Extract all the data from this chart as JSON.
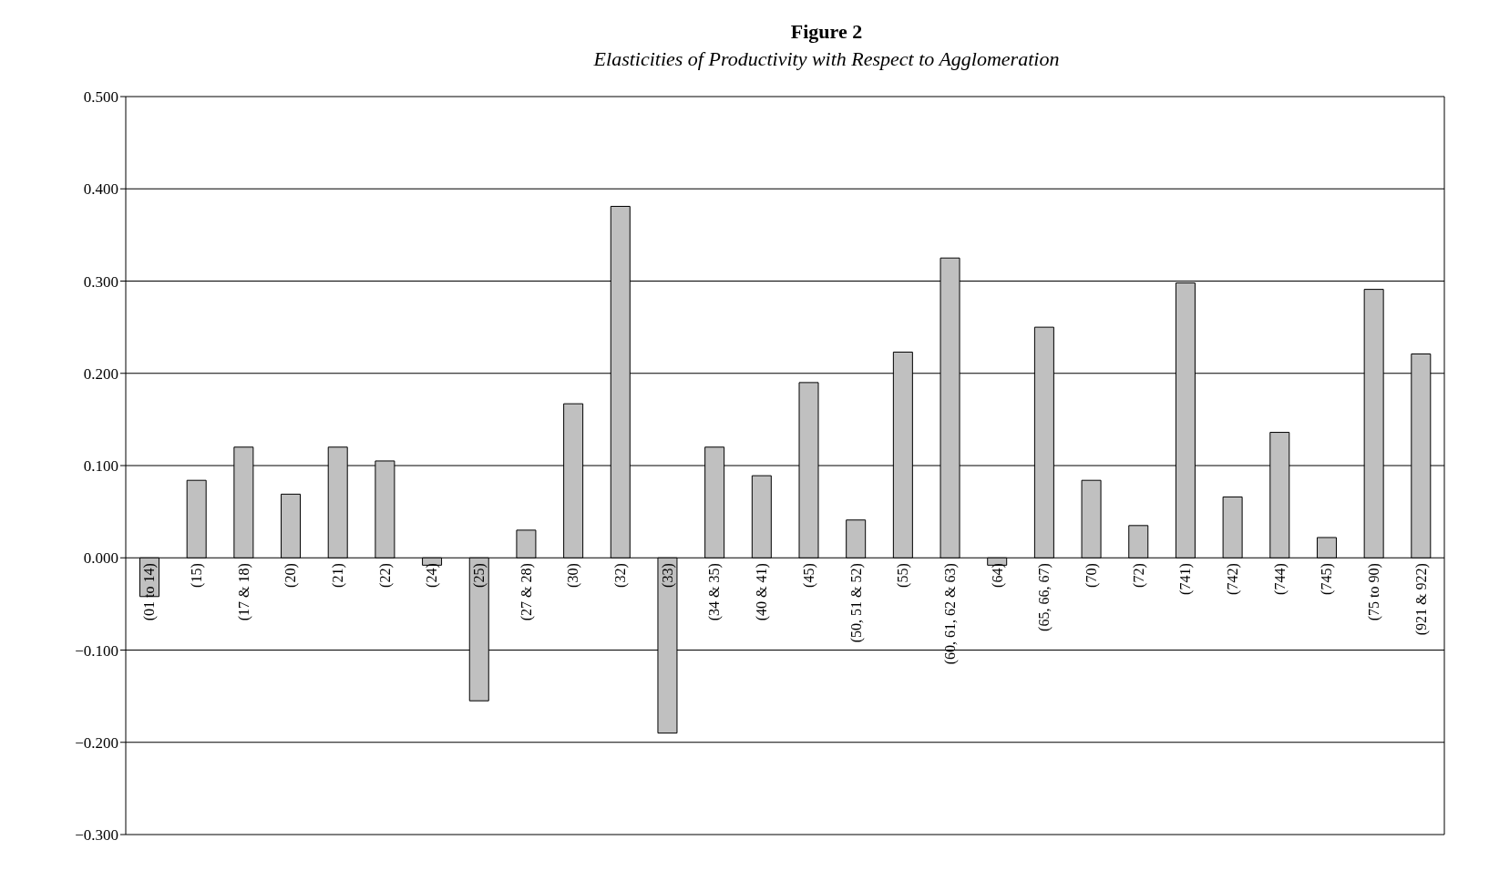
{
  "chart_data": {
    "type": "bar",
    "title": "Figure 2",
    "subtitle": "Elasticities of Productivity with Respect to Agglomeration",
    "categories": [
      "(01 to 14)",
      "(15)",
      "(17 & 18)",
      "(20)",
      "(21)",
      "(22)",
      "(24)",
      "(25)",
      "(27 & 28)",
      "(30)",
      "(32)",
      "(33)",
      "(34 & 35)",
      "(40 & 41)",
      "(45)",
      "(50, 51 & 52)",
      "(55)",
      "(60, 61, 62 & 63)",
      "(64)",
      "(65, 66, 67)",
      "(70)",
      "(72)",
      "(741)",
      "(742)",
      "(744)",
      "(745)",
      "(75 to 90)",
      "(921 & 922)"
    ],
    "values": [
      -0.042,
      0.084,
      0.12,
      0.069,
      0.12,
      0.105,
      -0.008,
      -0.155,
      0.03,
      0.167,
      0.381,
      -0.19,
      0.12,
      0.089,
      0.19,
      0.041,
      0.223,
      0.325,
      -0.008,
      0.25,
      0.084,
      0.035,
      0.298,
      0.066,
      0.136,
      0.022,
      0.291,
      0.221
    ],
    "color": "#c0c0c0",
    "ylim": [
      -0.3,
      0.5
    ],
    "yticks": [
      {
        "value": 0.5,
        "label": "0.500"
      },
      {
        "value": 0.4,
        "label": "0.400"
      },
      {
        "value": 0.3,
        "label": "0.300"
      },
      {
        "value": 0.2,
        "label": "0.200"
      },
      {
        "value": 0.1,
        "label": "0.100"
      },
      {
        "value": 0,
        "label": "0.000"
      },
      {
        "value": -0.1,
        "label": "−0.100"
      },
      {
        "value": -0.2,
        "label": "−0.200"
      },
      {
        "value": -0.3,
        "label": "−0.300"
      }
    ],
    "grid": "y"
  }
}
